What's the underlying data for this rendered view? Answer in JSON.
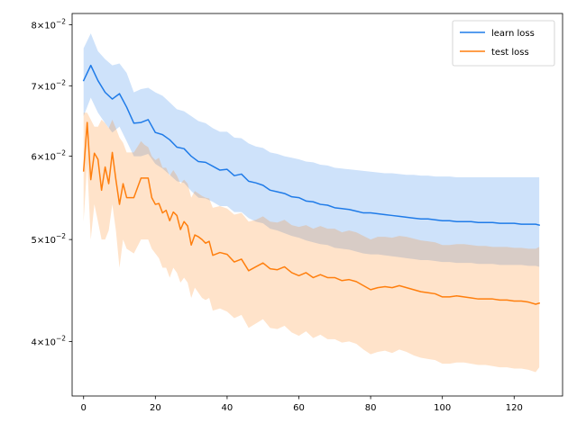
{
  "chart_data": {
    "type": "line",
    "title": "",
    "xlabel": "",
    "ylabel": "",
    "yscale": "log",
    "xlim": [
      -3.2,
      133.5
    ],
    "ylim": [
      0.0355,
      0.082
    ],
    "grid": false,
    "legend_position": "top-right",
    "x_ticks": [
      0,
      20,
      40,
      60,
      80,
      100,
      120
    ],
    "x_tick_labels": [
      "0",
      "20",
      "40",
      "60",
      "80",
      "100",
      "120"
    ],
    "y_ticks": [
      0.04,
      0.05,
      0.06,
      0.07,
      0.08
    ],
    "y_tick_labels": [
      {
        "mantissa": "4",
        "exponent": "−2"
      },
      {
        "mantissa": "5",
        "exponent": "−2"
      },
      {
        "mantissa": "6",
        "exponent": "−2"
      },
      {
        "mantissa": "7",
        "exponent": "−2"
      },
      {
        "mantissa": "8",
        "exponent": "−2"
      }
    ],
    "series": [
      {
        "name": "learn loss",
        "color": "#1f7be8",
        "band_color": "#1f7be8",
        "x": [
          0,
          2,
          4,
          6,
          8,
          10,
          12,
          14,
          16,
          18,
          20,
          22,
          24,
          26,
          28,
          30,
          32,
          34,
          36,
          38,
          40,
          42,
          44,
          46,
          48,
          50,
          52,
          54,
          56,
          58,
          60,
          62,
          64,
          66,
          68,
          70,
          72,
          74,
          76,
          78,
          80,
          82,
          84,
          86,
          88,
          90,
          92,
          94,
          96,
          98,
          100,
          102,
          104,
          106,
          108,
          110,
          112,
          114,
          116,
          118,
          120,
          122,
          124,
          126,
          127
        ],
        "mean": [
          0.0708,
          0.0732,
          0.0708,
          0.069,
          0.068,
          0.0688,
          0.0668,
          0.0645,
          0.0646,
          0.065,
          0.0632,
          0.0629,
          0.0622,
          0.0612,
          0.061,
          0.06,
          0.0593,
          0.0592,
          0.0587,
          0.0582,
          0.0583,
          0.0575,
          0.0577,
          0.0568,
          0.0566,
          0.0563,
          0.0557,
          0.0555,
          0.0553,
          0.0549,
          0.0548,
          0.0544,
          0.0543,
          0.054,
          0.0539,
          0.0536,
          0.0535,
          0.0534,
          0.0532,
          0.053,
          0.053,
          0.0529,
          0.0528,
          0.0527,
          0.0526,
          0.0525,
          0.0524,
          0.0523,
          0.0523,
          0.0522,
          0.0521,
          0.0521,
          0.052,
          0.052,
          0.052,
          0.0519,
          0.0519,
          0.0519,
          0.0518,
          0.0518,
          0.0518,
          0.0517,
          0.0517,
          0.0517,
          0.0516
        ],
        "upper": [
          0.076,
          0.0785,
          0.0755,
          0.0742,
          0.0732,
          0.0735,
          0.072,
          0.069,
          0.0695,
          0.0697,
          0.069,
          0.0685,
          0.0675,
          0.0665,
          0.0662,
          0.0655,
          0.0648,
          0.0645,
          0.0638,
          0.0633,
          0.0633,
          0.0625,
          0.0624,
          0.0617,
          0.0613,
          0.0611,
          0.0605,
          0.0603,
          0.06,
          0.0598,
          0.0596,
          0.0593,
          0.0592,
          0.0589,
          0.0588,
          0.0585,
          0.0584,
          0.0583,
          0.0582,
          0.0581,
          0.058,
          0.0579,
          0.0578,
          0.0578,
          0.0577,
          0.0576,
          0.0576,
          0.0575,
          0.0575,
          0.0574,
          0.0574,
          0.0574,
          0.0573,
          0.0573,
          0.0573,
          0.0573,
          0.0573,
          0.0573,
          0.0573,
          0.0573,
          0.0573,
          0.0573,
          0.0573,
          0.0573,
          0.0573
        ],
        "lower": [
          0.0655,
          0.0682,
          0.066,
          0.0645,
          0.0632,
          0.064,
          0.062,
          0.06,
          0.06,
          0.0603,
          0.059,
          0.0584,
          0.0576,
          0.0568,
          0.0566,
          0.0556,
          0.0548,
          0.0547,
          0.0543,
          0.0538,
          0.0538,
          0.0531,
          0.0531,
          0.0524,
          0.052,
          0.0518,
          0.0512,
          0.051,
          0.0507,
          0.0504,
          0.0502,
          0.0499,
          0.0497,
          0.0495,
          0.0494,
          0.0491,
          0.049,
          0.0489,
          0.0487,
          0.0485,
          0.0484,
          0.0484,
          0.0483,
          0.0482,
          0.0481,
          0.048,
          0.0479,
          0.0478,
          0.0478,
          0.0477,
          0.0476,
          0.0476,
          0.0475,
          0.0475,
          0.0475,
          0.0474,
          0.0474,
          0.0474,
          0.0473,
          0.0473,
          0.0473,
          0.0473,
          0.0472,
          0.0472,
          0.0471
        ]
      },
      {
        "name": "test loss",
        "color": "#ff7f0e",
        "band_color": "#ff7f0e",
        "x": [
          0,
          1,
          2,
          3,
          4,
          5,
          6,
          7,
          8,
          9,
          10,
          11,
          12,
          14,
          16,
          17,
          18,
          19,
          20,
          21,
          22,
          23,
          24,
          25,
          26,
          27,
          28,
          29,
          30,
          31,
          32,
          33,
          34,
          35,
          36,
          38,
          40,
          42,
          44,
          46,
          48,
          50,
          52,
          54,
          56,
          58,
          60,
          62,
          64,
          66,
          68,
          70,
          72,
          74,
          76,
          78,
          80,
          82,
          84,
          86,
          88,
          90,
          92,
          94,
          96,
          98,
          100,
          102,
          104,
          106,
          108,
          110,
          112,
          114,
          116,
          118,
          120,
          122,
          124,
          126,
          127
        ],
        "mean": [
          0.0581,
          0.0646,
          0.057,
          0.0604,
          0.0596,
          0.0557,
          0.0586,
          0.0565,
          0.0605,
          0.057,
          0.054,
          0.0565,
          0.0548,
          0.0548,
          0.0572,
          0.0572,
          0.0572,
          0.0548,
          0.054,
          0.0541,
          0.053,
          0.0533,
          0.0521,
          0.0531,
          0.0527,
          0.0511,
          0.052,
          0.0515,
          0.0494,
          0.0505,
          0.0503,
          0.05,
          0.0496,
          0.0498,
          0.0483,
          0.0486,
          0.0484,
          0.0476,
          0.0479,
          0.0467,
          0.0471,
          0.0475,
          0.0469,
          0.0468,
          0.0471,
          0.0465,
          0.0462,
          0.0465,
          0.046,
          0.0463,
          0.046,
          0.046,
          0.0457,
          0.0458,
          0.0456,
          0.0452,
          0.0448,
          0.045,
          0.0451,
          0.045,
          0.0452,
          0.045,
          0.0448,
          0.0446,
          0.0445,
          0.0444,
          0.0441,
          0.0441,
          0.0442,
          0.0441,
          0.044,
          0.0439,
          0.0439,
          0.0439,
          0.0438,
          0.0438,
          0.0437,
          0.0437,
          0.0436,
          0.0434,
          0.0435
        ],
        "upper": [
          0.066,
          0.066,
          0.065,
          0.064,
          0.064,
          0.065,
          0.0645,
          0.0638,
          0.065,
          0.0638,
          0.0625,
          0.0618,
          0.0605,
          0.0605,
          0.062,
          0.0615,
          0.0612,
          0.06,
          0.0595,
          0.0598,
          0.0585,
          0.0585,
          0.0575,
          0.0582,
          0.0575,
          0.0565,
          0.057,
          0.0565,
          0.0548,
          0.0556,
          0.0553,
          0.055,
          0.0548,
          0.0547,
          0.0536,
          0.0538,
          0.0535,
          0.0528,
          0.053,
          0.052,
          0.0522,
          0.0526,
          0.052,
          0.0519,
          0.0522,
          0.0516,
          0.0514,
          0.0516,
          0.0512,
          0.0515,
          0.0512,
          0.0512,
          0.0508,
          0.051,
          0.0508,
          0.0504,
          0.05,
          0.0503,
          0.0503,
          0.0502,
          0.0504,
          0.0503,
          0.0501,
          0.0499,
          0.0498,
          0.0497,
          0.0494,
          0.0494,
          0.0495,
          0.0495,
          0.0494,
          0.0493,
          0.0493,
          0.0492,
          0.0492,
          0.0492,
          0.0491,
          0.0491,
          0.049,
          0.049,
          0.0492
        ],
        "lower": [
          0.052,
          0.059,
          0.05,
          0.054,
          0.052,
          0.05,
          0.05,
          0.051,
          0.054,
          0.051,
          0.047,
          0.05,
          0.049,
          0.0485,
          0.05,
          0.05,
          0.05,
          0.049,
          0.0485,
          0.048,
          0.047,
          0.047,
          0.046,
          0.047,
          0.0465,
          0.0455,
          0.046,
          0.0455,
          0.044,
          0.045,
          0.0445,
          0.044,
          0.0438,
          0.044,
          0.0428,
          0.043,
          0.0427,
          0.0421,
          0.0424,
          0.0412,
          0.0416,
          0.042,
          0.0412,
          0.0411,
          0.0414,
          0.0408,
          0.0405,
          0.0409,
          0.0403,
          0.0406,
          0.0402,
          0.0402,
          0.0399,
          0.04,
          0.0398,
          0.0393,
          0.0389,
          0.0391,
          0.0392,
          0.039,
          0.0393,
          0.0391,
          0.0388,
          0.0386,
          0.0385,
          0.0384,
          0.0381,
          0.0381,
          0.0382,
          0.0382,
          0.0381,
          0.038,
          0.038,
          0.0379,
          0.0378,
          0.0378,
          0.0377,
          0.0377,
          0.0376,
          0.0374,
          0.0378
        ]
      }
    ]
  }
}
